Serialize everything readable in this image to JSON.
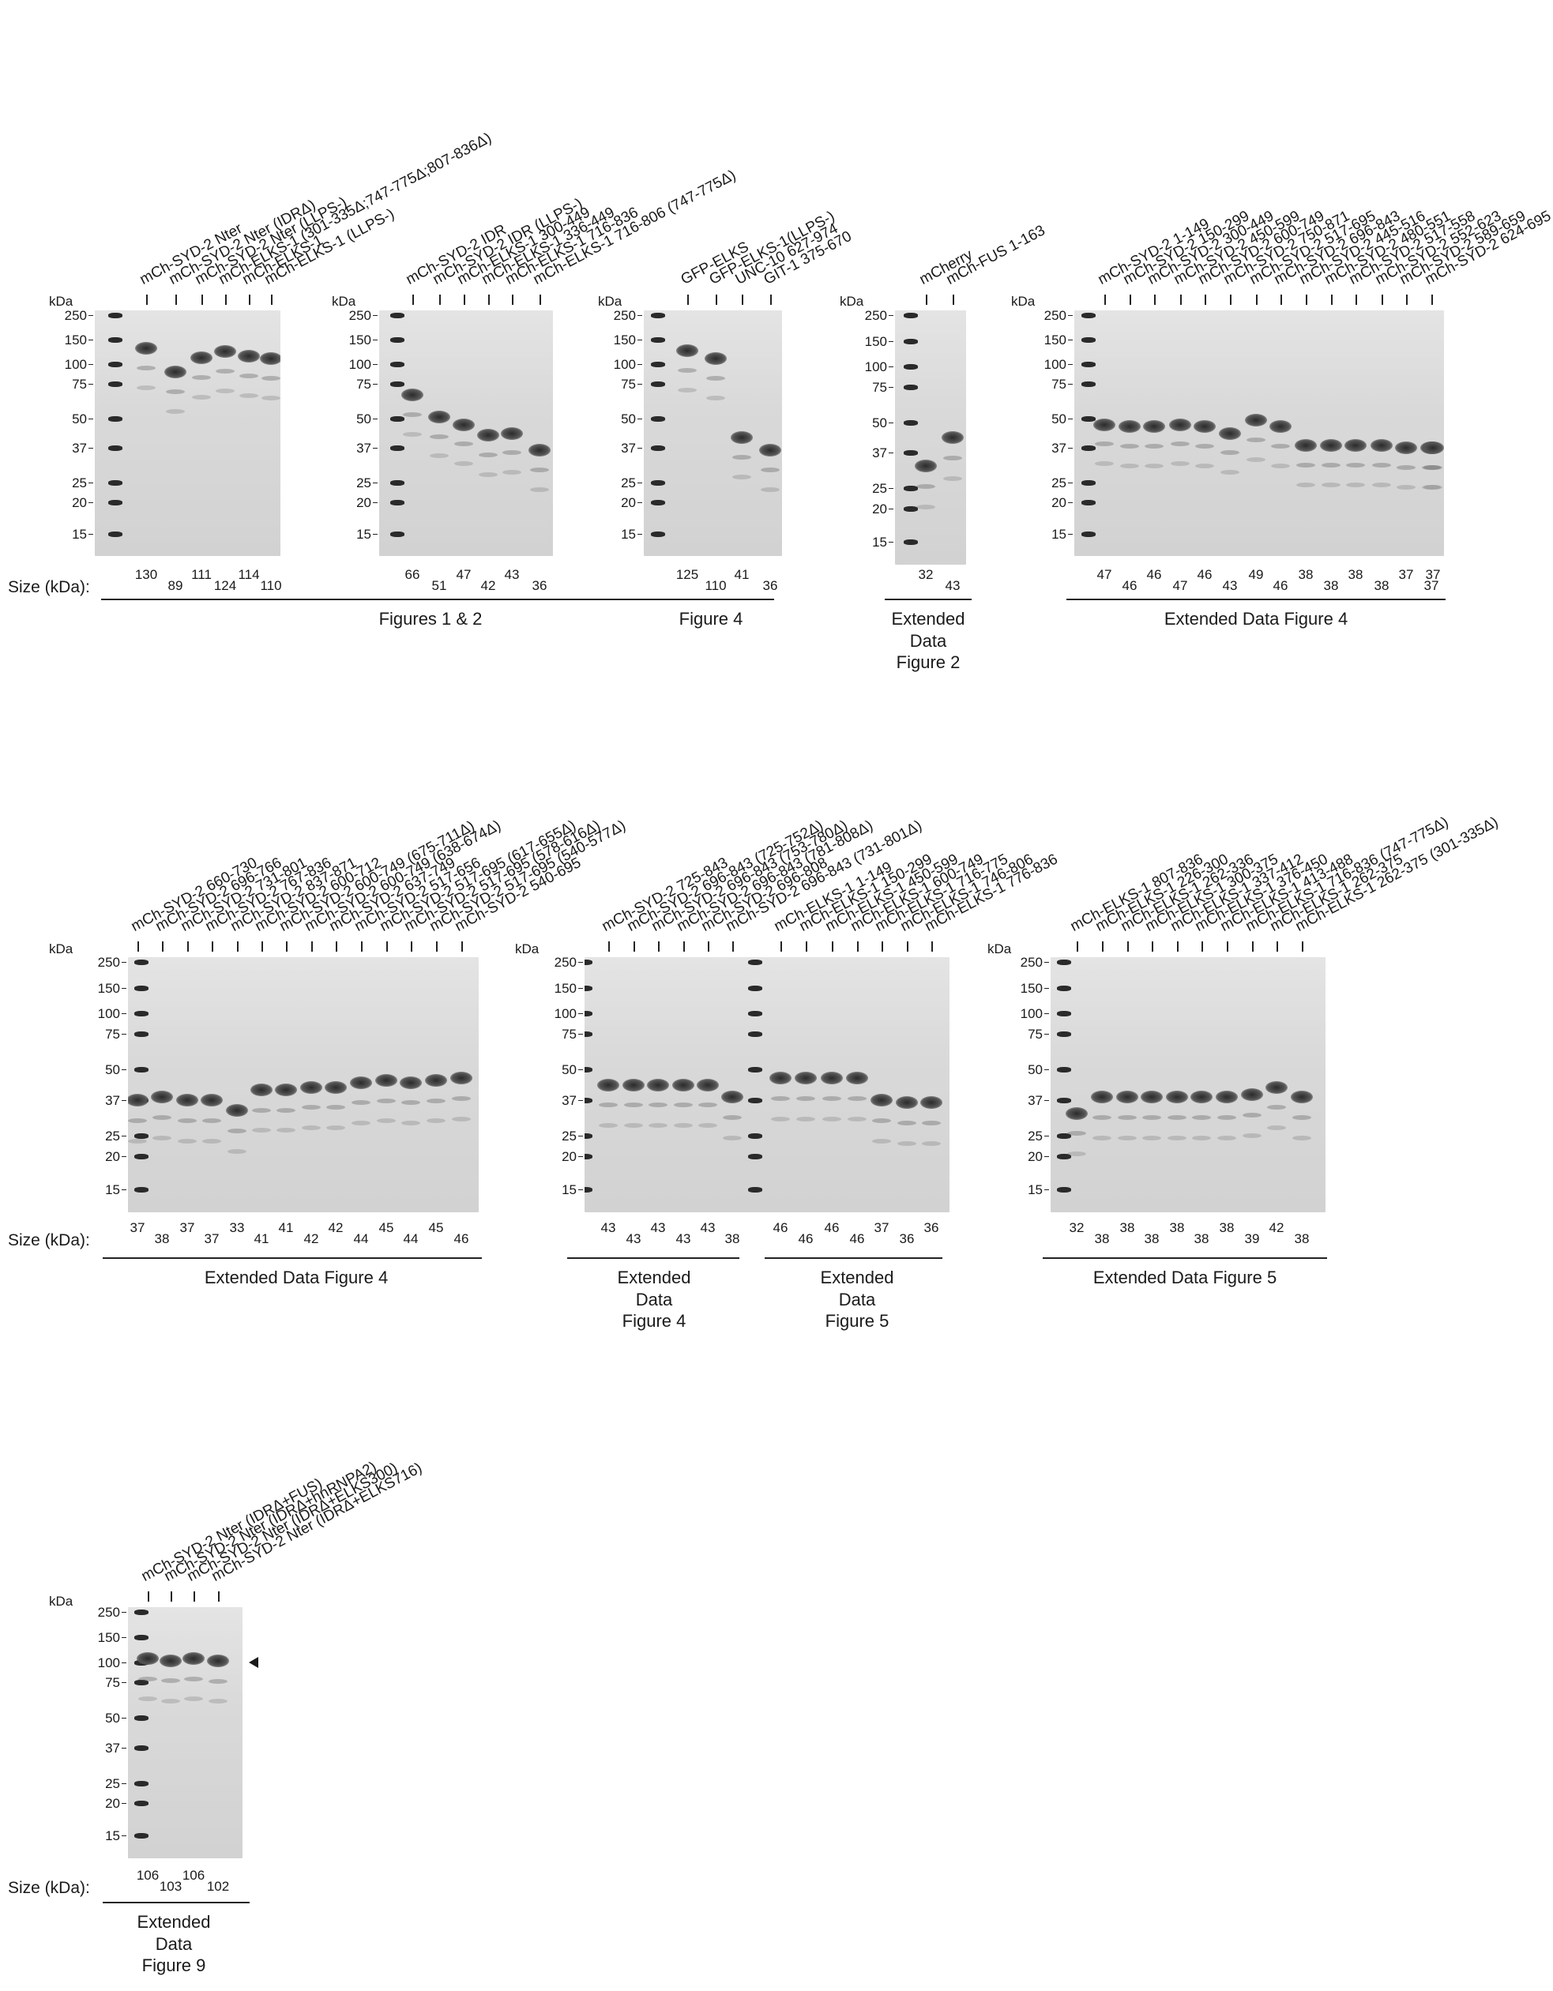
{
  "common": {
    "kda_label": "kDa",
    "size_label": "Size (kDa):"
  },
  "panels": [
    {
      "id": "p1",
      "caption": "Figures 1 & 2",
      "markers": [
        250,
        150,
        100,
        75,
        50,
        37,
        25,
        20,
        15
      ],
      "lanes": [
        {
          "label": "mCh-SYD-2 Nter",
          "size": "130"
        },
        {
          "label": "mCh-SYD-2 Nter (IDRΔ)",
          "size": "89"
        },
        {
          "label": "mCh-SYD-2 Nter (LLPS-)",
          "size": "111"
        },
        {
          "label": "mCh-ELKS-1 (301-335Δ;747-775Δ;807-836Δ)",
          "size": "124"
        },
        {
          "label": "mCh-ELKS-1",
          "size": "114"
        },
        {
          "label": "mCh-ELKS-1 (LLPS-)",
          "size": "110"
        }
      ]
    },
    {
      "id": "p2",
      "caption": "",
      "markers": [
        250,
        150,
        100,
        75,
        50,
        37,
        25,
        20,
        15
      ],
      "lanes": [
        {
          "label": "mCh-SYD-2 IDR",
          "size": "66"
        },
        {
          "label": "mCh-SYD-2 IDR (LLPS-)",
          "size": "51"
        },
        {
          "label": "mCh-ELKS-1 300-449",
          "size": "47"
        },
        {
          "label": "mCh-ELKS-1 336-449",
          "size": "42"
        },
        {
          "label": "mCh-ELKS-1 716-836",
          "size": "43"
        },
        {
          "label": "mCh-ELKS-1 716-806 (747-775Δ)",
          "size": "36"
        }
      ]
    },
    {
      "id": "p3",
      "caption": "Figure 4",
      "markers": [
        250,
        150,
        100,
        75,
        50,
        37,
        25,
        20,
        15
      ],
      "lanes": [
        {
          "label": "GFP-ELKS",
          "size": "125"
        },
        {
          "label": "GFP-ELKS-1(LLPS-)",
          "size": "110"
        },
        {
          "label": "UNC-10 627-974",
          "size": "41"
        },
        {
          "label": "GIT-1 375-670",
          "size": "36"
        }
      ]
    },
    {
      "id": "p4",
      "caption": "Extended\nData\nFigure 2",
      "markers": [
        250,
        150,
        100,
        75,
        50,
        37,
        25,
        20,
        15
      ],
      "lanes": [
        {
          "label": "mCherry",
          "size": "32"
        },
        {
          "label": "mCh-FUS 1-163",
          "size": "43"
        }
      ]
    },
    {
      "id": "p5",
      "caption": "Extended Data Figure 4",
      "markers": [
        250,
        150,
        100,
        75,
        50,
        37,
        25,
        20,
        15
      ],
      "lanes": [
        {
          "label": "mCh-SYD-2 1-149",
          "size": "47"
        },
        {
          "label": "mCh-SYD-2 150-299",
          "size": "46"
        },
        {
          "label": "mCh-SYD-2 300-449",
          "size": "46"
        },
        {
          "label": "mCh-SYD-2 450-599",
          "size": "47"
        },
        {
          "label": "mCh-SYD-2 600-749",
          "size": "46"
        },
        {
          "label": "mCh-SYD-2 750-871",
          "size": "43"
        },
        {
          "label": "mCh-SYD-2 517-695",
          "size": "49"
        },
        {
          "label": "mCh-SYD-2 696-843",
          "size": "46"
        },
        {
          "label": "mCh-SYD-2 445-516",
          "size": "38"
        },
        {
          "label": "mCh-SYD-2 480-551",
          "size": "38"
        },
        {
          "label": "mCh-SYD-2 517-558",
          "size": "38"
        },
        {
          "label": "mCh-SYD-2 552-623",
          "size": "38"
        },
        {
          "label": "mCh-SYD-2 589-659",
          "size": "37"
        },
        {
          "label": "mCh-SYD-2 624-695",
          "size": "37"
        },
        {
          "label": "",
          "size": "37"
        }
      ]
    },
    {
      "id": "p6",
      "caption": "Extended Data Figure 4",
      "markers": [
        250,
        150,
        100,
        75,
        50,
        37,
        25,
        20,
        15
      ],
      "lanes": [
        {
          "label": "mCh-SYD-2 660-730",
          "size": "37"
        },
        {
          "label": "mCh-SYD-2 696-766",
          "size": "38"
        },
        {
          "label": "mCh-SYD-2 731-801",
          "size": "37"
        },
        {
          "label": "mCh-SYD-2 767-836",
          "size": "37"
        },
        {
          "label": "mCh-SYD-2 837-871",
          "size": "33"
        },
        {
          "label": "mCh-SYD-2 600-712",
          "size": "41"
        },
        {
          "label": "mCh-SYD-2 600-749 (675-711Δ)",
          "size": "41"
        },
        {
          "label": "mCh-SYD-2 600-749 (638-674Δ)",
          "size": "42"
        },
        {
          "label": "mCh-SYD-2 637-749",
          "size": "42"
        },
        {
          "label": "mCh-SYD-2 517-656",
          "size": "44"
        },
        {
          "label": "mCh-SYD-2 517-695 (617-655Δ)",
          "size": "45"
        },
        {
          "label": "mCh-SYD-2 517-695 (578-616Δ)",
          "size": "44"
        },
        {
          "label": "mCh-SYD-2 517-695 (540-577Δ)",
          "size": "45"
        },
        {
          "label": "mCh-SYD-2 540-695",
          "size": "46"
        }
      ]
    },
    {
      "id": "p7",
      "caption_a": "Extended\nData\nFigure 4",
      "caption_b": "Extended\nData\nFigure 5",
      "markers": [
        250,
        150,
        100,
        75,
        50,
        37,
        25,
        20,
        15
      ],
      "lanes": [
        {
          "label": "mCh-SYD-2 725-843",
          "size": "43"
        },
        {
          "label": "mCh-SYD-2 696-843 (725-752Δ)",
          "size": "43"
        },
        {
          "label": "mCh-SYD-2 696-843 (753-780Δ)",
          "size": "43"
        },
        {
          "label": "mCh-SYD-2 696-843 (781-808Δ)",
          "size": "43"
        },
        {
          "label": "mCh-SYD-2 696-808",
          "size": "43"
        },
        {
          "label": "mCh-SYD-2 696-843 (731-801Δ)",
          "size": "38"
        },
        {
          "label": "mCh-ELKS-1 1-149",
          "size": "46"
        },
        {
          "label": "mCh-ELKS-1 150-299",
          "size": "46"
        },
        {
          "label": "mCh-ELKS-1 450-599",
          "size": "46"
        },
        {
          "label": "mCh-ELKS-1 600-749",
          "size": "46"
        },
        {
          "label": "mCh-ELKS-1 716-775",
          "size": "37"
        },
        {
          "label": "mCh-ELKS-1 746-806",
          "size": "36"
        },
        {
          "label": "mCh-ELKS-1 776-836",
          "size": "36"
        }
      ]
    },
    {
      "id": "p8",
      "caption": "Extended Data Figure 5",
      "markers": [
        250,
        150,
        100,
        75,
        50,
        37,
        25,
        20,
        15
      ],
      "lanes": [
        {
          "label": "mCh-ELKS-1 807-836",
          "size": "32"
        },
        {
          "label": "mCh-ELKS-1 226-300",
          "size": "38"
        },
        {
          "label": "mCh-ELKS-1 262-336",
          "size": "38"
        },
        {
          "label": "mCh-ELKS-1 300-375",
          "size": "38"
        },
        {
          "label": "mCh-ELKS-1 337-412",
          "size": "38"
        },
        {
          "label": "mCh-ELKS-1 376-450",
          "size": "38"
        },
        {
          "label": "mCh-ELKS-1 413-488",
          "size": "38"
        },
        {
          "label": "mCh-ELKS-1 716-836 (747-775Δ)",
          "size": "39"
        },
        {
          "label": "mCh-ELKS-1 262-375",
          "size": "42"
        },
        {
          "label": "mCh-ELKS-1 262-375 (301-335Δ)",
          "size": "38"
        }
      ]
    },
    {
      "id": "p9",
      "caption": "Extended\nData\nFigure 9",
      "markers": [
        250,
        150,
        100,
        75,
        50,
        37,
        25,
        20,
        15
      ],
      "lanes": [
        {
          "label": "mCh-SYD-2 Nter (IDRΔ+FUS)",
          "size": "106"
        },
        {
          "label": "mCh-SYD-2 Nter (IDRΔ+hnRNPA2)",
          "size": "103"
        },
        {
          "label": "mCh-SYD-2 Nter (IDRΔ+ELKS300)",
          "size": "106"
        },
        {
          "label": "mCh-SYD-2 Nter (IDRΔ+ELKS716)",
          "size": "102"
        }
      ]
    }
  ]
}
